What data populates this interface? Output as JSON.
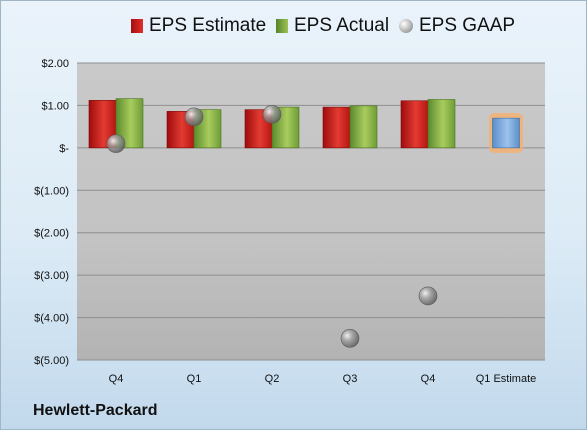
{
  "chart_data": {
    "type": "bar",
    "categories": [
      "Q4",
      "Q1",
      "Q2",
      "Q3",
      "Q4",
      "Q1 Estimate"
    ],
    "series": [
      {
        "name": "EPS Estimate",
        "values": [
          1.12,
          0.86,
          0.9,
          0.96,
          1.11,
          null
        ],
        "color": "#c8201c"
      },
      {
        "name": "EPS Actual",
        "values": [
          1.16,
          0.9,
          0.96,
          0.99,
          1.14,
          null
        ],
        "color": "#7fae3e"
      },
      {
        "name": "EPS GAAP",
        "values": [
          0.1,
          0.73,
          0.79,
          -4.49,
          -3.49,
          null
        ],
        "color": "#9a9a9a",
        "marker": "sphere"
      },
      {
        "name": "Q1 Estimate",
        "values": [
          null,
          null,
          null,
          null,
          null,
          0.7
        ],
        "color": "#6a9fd6",
        "highlight": "#f5b072"
      }
    ],
    "y_tick_labels": [
      "$2.00",
      "$1.00",
      "$-",
      "$(1.00)",
      "$(2.00)",
      "$(3.00)",
      "$(4.00)",
      "$(5.00)"
    ],
    "y_tick_values": [
      2,
      1,
      0,
      -1,
      -2,
      -3,
      -4,
      -5
    ],
    "ylim": [
      -5,
      2
    ],
    "grid": true,
    "legend_position": "top",
    "plot_background": "#c8c8c8"
  },
  "legend": [
    {
      "label": "EPS Estimate",
      "swatch": "red"
    },
    {
      "label": "EPS Actual",
      "swatch": "green"
    },
    {
      "label": "EPS GAAP",
      "swatch": "gray"
    }
  ],
  "footer": {
    "company": "Hewlett-Packard"
  }
}
